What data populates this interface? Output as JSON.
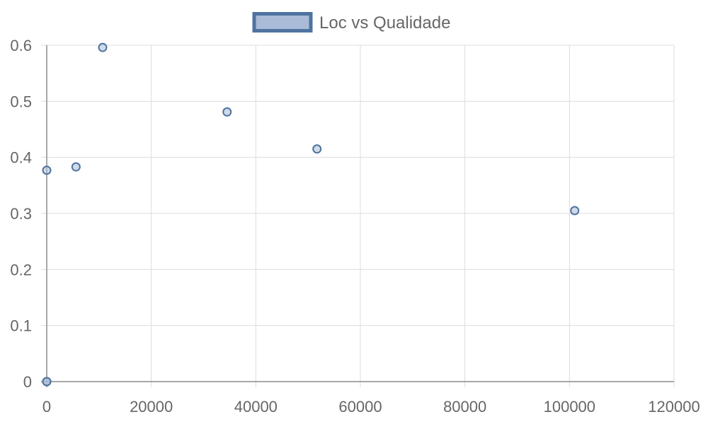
{
  "chart_data": {
    "type": "scatter",
    "title": "",
    "xlabel": "",
    "ylabel": "",
    "xlim": [
      0,
      120000
    ],
    "ylim": [
      0,
      0.6
    ],
    "x_ticks": [
      "0",
      "20000",
      "40000",
      "60000",
      "80000",
      "100000",
      "120000"
    ],
    "y_ticks": [
      "0",
      "0.1",
      "0.2",
      "0.3",
      "0.4",
      "0.5",
      "0.6"
    ],
    "grid": true,
    "legend_position": "top-center",
    "series": [
      {
        "name": "Loc vs Qualidade",
        "fill_color": "#a9bbd7",
        "border_color": "#4e739f",
        "points": [
          {
            "x": 0,
            "y": 0
          },
          {
            "x": 0,
            "y": 0
          },
          {
            "x": 0,
            "y": 0.377
          },
          {
            "x": 5600,
            "y": 0.383
          },
          {
            "x": 10700,
            "y": 0.596
          },
          {
            "x": 34500,
            "y": 0.481
          },
          {
            "x": 51700,
            "y": 0.415
          },
          {
            "x": 101000,
            "y": 0.305
          }
        ]
      }
    ]
  }
}
